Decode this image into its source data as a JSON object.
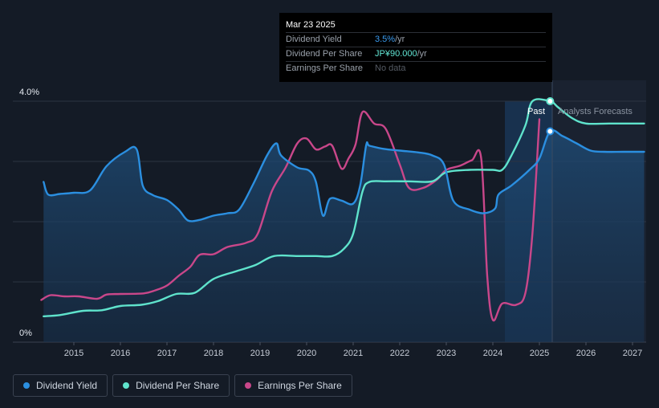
{
  "tooltip": {
    "date": "Mar 23 2025",
    "rows": [
      {
        "label": "Dividend Yield",
        "value": "3.5%",
        "unit": " /yr"
      },
      {
        "label": "Dividend Per Share",
        "value": "JP¥90.000",
        "unit": " /yr"
      },
      {
        "label": "Earnings Per Share",
        "value": "No data",
        "unit": ""
      }
    ]
  },
  "legend": [
    {
      "label": "Dividend Yield",
      "color": "#2b8fe0"
    },
    {
      "label": "Dividend Per Share",
      "color": "#5fe3cc"
    },
    {
      "label": "Earnings Per Share",
      "color": "#c9478a"
    }
  ],
  "chart_data": {
    "type": "line",
    "y_ticks": [
      "4.0%",
      "0%"
    ],
    "x_ticks": [
      "2015",
      "2016",
      "2017",
      "2018",
      "2019",
      "2020",
      "2021",
      "2022",
      "2023",
      "2024",
      "2025",
      "2026",
      "2027"
    ],
    "past_label": "Past",
    "forecast_label": "Analysts Forecasts",
    "x_range": [
      2014.3,
      2027.25
    ],
    "y_range": [
      0,
      4.0
    ],
    "series": [
      {
        "name": "Dividend Yield",
        "color": "#2b8fe0",
        "points": [
          [
            2014.35,
            2.66
          ],
          [
            2014.45,
            2.45
          ],
          [
            2014.7,
            2.46
          ],
          [
            2015.0,
            2.48
          ],
          [
            2015.35,
            2.52
          ],
          [
            2015.7,
            2.92
          ],
          [
            2016.1,
            3.16
          ],
          [
            2016.35,
            3.2
          ],
          [
            2016.48,
            2.6
          ],
          [
            2016.7,
            2.44
          ],
          [
            2017.0,
            2.36
          ],
          [
            2017.25,
            2.2
          ],
          [
            2017.45,
            2.02
          ],
          [
            2017.7,
            2.03
          ],
          [
            2018.0,
            2.1
          ],
          [
            2018.3,
            2.14
          ],
          [
            2018.55,
            2.2
          ],
          [
            2018.85,
            2.62
          ],
          [
            2019.15,
            3.1
          ],
          [
            2019.35,
            3.3
          ],
          [
            2019.45,
            3.1
          ],
          [
            2019.8,
            2.9
          ],
          [
            2020.05,
            2.85
          ],
          [
            2020.2,
            2.66
          ],
          [
            2020.35,
            2.1
          ],
          [
            2020.5,
            2.38
          ],
          [
            2020.75,
            2.35
          ],
          [
            2021.0,
            2.3
          ],
          [
            2021.15,
            2.6
          ],
          [
            2021.28,
            3.27
          ],
          [
            2021.35,
            3.26
          ],
          [
            2021.65,
            3.21
          ],
          [
            2022.0,
            3.18
          ],
          [
            2022.4,
            3.15
          ],
          [
            2022.7,
            3.1
          ],
          [
            2022.95,
            2.95
          ],
          [
            2023.15,
            2.35
          ],
          [
            2023.5,
            2.2
          ],
          [
            2023.8,
            2.14
          ],
          [
            2024.05,
            2.22
          ],
          [
            2024.12,
            2.45
          ],
          [
            2024.4,
            2.6
          ],
          [
            2024.8,
            2.87
          ],
          [
            2025.0,
            3.05
          ],
          [
            2025.23,
            3.5
          ],
          [
            2025.5,
            3.42
          ],
          [
            2025.8,
            3.3
          ],
          [
            2026.1,
            3.18
          ],
          [
            2026.4,
            3.16
          ],
          [
            2026.8,
            3.16
          ],
          [
            2027.25,
            3.16
          ]
        ]
      },
      {
        "name": "Dividend Per Share",
        "color": "#5fe3cc",
        "points": [
          [
            2014.35,
            0.43
          ],
          [
            2014.7,
            0.45
          ],
          [
            2015.2,
            0.52
          ],
          [
            2015.6,
            0.53
          ],
          [
            2016.0,
            0.6
          ],
          [
            2016.45,
            0.62
          ],
          [
            2016.8,
            0.68
          ],
          [
            2017.2,
            0.8
          ],
          [
            2017.6,
            0.82
          ],
          [
            2018.0,
            1.05
          ],
          [
            2018.5,
            1.18
          ],
          [
            2018.9,
            1.28
          ],
          [
            2019.3,
            1.43
          ],
          [
            2019.8,
            1.43
          ],
          [
            2020.2,
            1.43
          ],
          [
            2020.55,
            1.43
          ],
          [
            2020.8,
            1.55
          ],
          [
            2021.0,
            1.8
          ],
          [
            2021.2,
            2.5
          ],
          [
            2021.35,
            2.66
          ],
          [
            2021.7,
            2.67
          ],
          [
            2022.2,
            2.67
          ],
          [
            2022.7,
            2.67
          ],
          [
            2023.0,
            2.82
          ],
          [
            2023.5,
            2.86
          ],
          [
            2024.0,
            2.86
          ],
          [
            2024.2,
            2.86
          ],
          [
            2024.4,
            3.1
          ],
          [
            2024.7,
            3.6
          ],
          [
            2024.85,
            4.0
          ],
          [
            2025.23,
            4.0
          ],
          [
            2025.4,
            3.9
          ],
          [
            2025.7,
            3.72
          ],
          [
            2026.0,
            3.63
          ],
          [
            2026.5,
            3.63
          ],
          [
            2027.25,
            3.63
          ]
        ]
      },
      {
        "name": "Earnings Per Share",
        "color": "#c9478a",
        "points": [
          [
            2014.3,
            0.7
          ],
          [
            2014.5,
            0.78
          ],
          [
            2014.8,
            0.76
          ],
          [
            2015.1,
            0.76
          ],
          [
            2015.5,
            0.72
          ],
          [
            2015.7,
            0.79
          ],
          [
            2016.0,
            0.8
          ],
          [
            2016.5,
            0.81
          ],
          [
            2016.75,
            0.86
          ],
          [
            2017.0,
            0.94
          ],
          [
            2017.25,
            1.1
          ],
          [
            2017.5,
            1.25
          ],
          [
            2017.7,
            1.45
          ],
          [
            2018.0,
            1.46
          ],
          [
            2018.3,
            1.58
          ],
          [
            2018.7,
            1.65
          ],
          [
            2018.95,
            1.8
          ],
          [
            2019.25,
            2.5
          ],
          [
            2019.55,
            2.9
          ],
          [
            2019.8,
            3.3
          ],
          [
            2020.0,
            3.38
          ],
          [
            2020.2,
            3.2
          ],
          [
            2020.4,
            3.25
          ],
          [
            2020.55,
            3.26
          ],
          [
            2020.75,
            2.88
          ],
          [
            2020.9,
            3.05
          ],
          [
            2021.05,
            3.28
          ],
          [
            2021.2,
            3.82
          ],
          [
            2021.45,
            3.63
          ],
          [
            2021.7,
            3.54
          ],
          [
            2022.0,
            2.95
          ],
          [
            2022.2,
            2.56
          ],
          [
            2022.5,
            2.56
          ],
          [
            2022.8,
            2.7
          ],
          [
            2023.0,
            2.86
          ],
          [
            2023.3,
            2.93
          ],
          [
            2023.55,
            3.02
          ],
          [
            2023.75,
            3.05
          ],
          [
            2023.88,
            1.1
          ],
          [
            2024.0,
            0.37
          ],
          [
            2024.2,
            0.64
          ],
          [
            2024.5,
            0.62
          ],
          [
            2024.7,
            0.82
          ],
          [
            2024.85,
            1.8
          ],
          [
            2025.0,
            3.7
          ]
        ]
      }
    ]
  }
}
